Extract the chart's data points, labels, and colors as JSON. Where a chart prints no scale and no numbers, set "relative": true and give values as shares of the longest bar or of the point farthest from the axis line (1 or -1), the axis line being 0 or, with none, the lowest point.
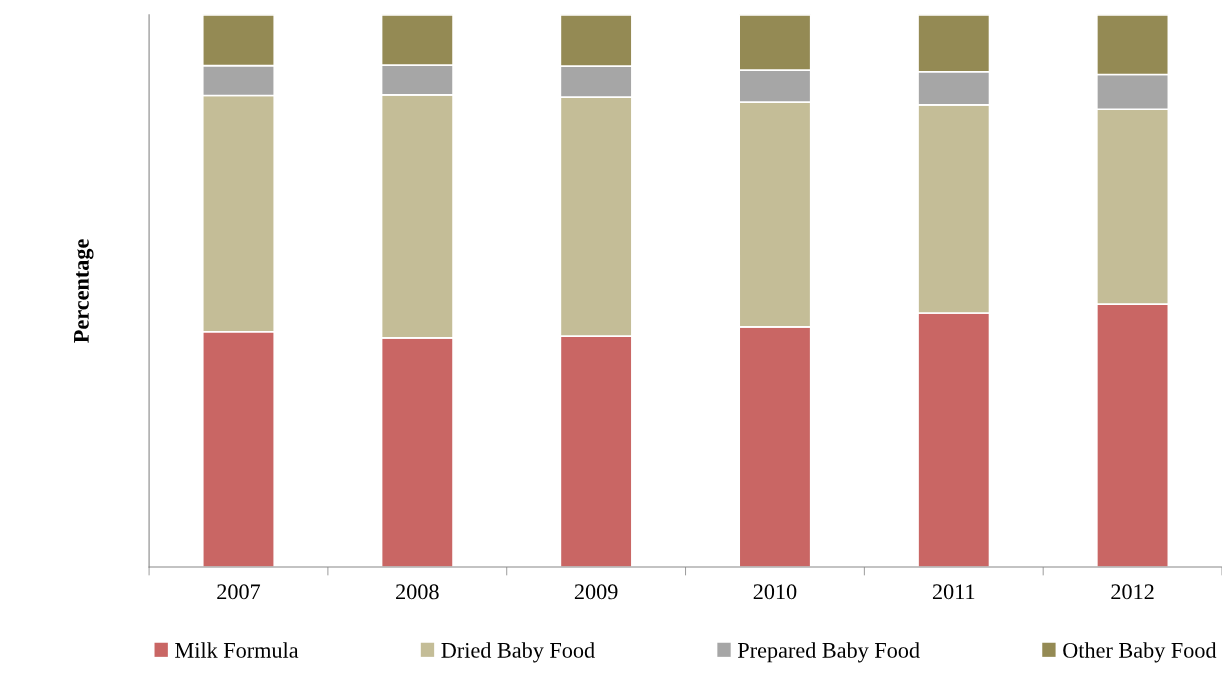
{
  "chart_data": {
    "type": "bar",
    "stacked": true,
    "relative": true,
    "ylabel": "Percentage",
    "categories": [
      "2007",
      "2008",
      "2009",
      "2010",
      "2011",
      "2012"
    ],
    "series": [
      {
        "name": "Milk Formula",
        "color": "#c96664",
        "values": [
          0.426,
          0.415,
          0.418,
          0.435,
          0.46,
          0.476
        ]
      },
      {
        "name": "Dried Baby Food",
        "color": "#c4bd97",
        "values": [
          0.428,
          0.44,
          0.433,
          0.407,
          0.377,
          0.353
        ]
      },
      {
        "name": "Prepared Baby Food",
        "color": "#a6a6a6",
        "values": [
          0.054,
          0.054,
          0.056,
          0.058,
          0.06,
          0.063
        ]
      },
      {
        "name": "Other Baby Food",
        "color": "#948a54",
        "values": [
          0.092,
          0.091,
          0.093,
          0.1,
          0.103,
          0.108
        ]
      }
    ],
    "legend": "bottom",
    "grid": false
  }
}
